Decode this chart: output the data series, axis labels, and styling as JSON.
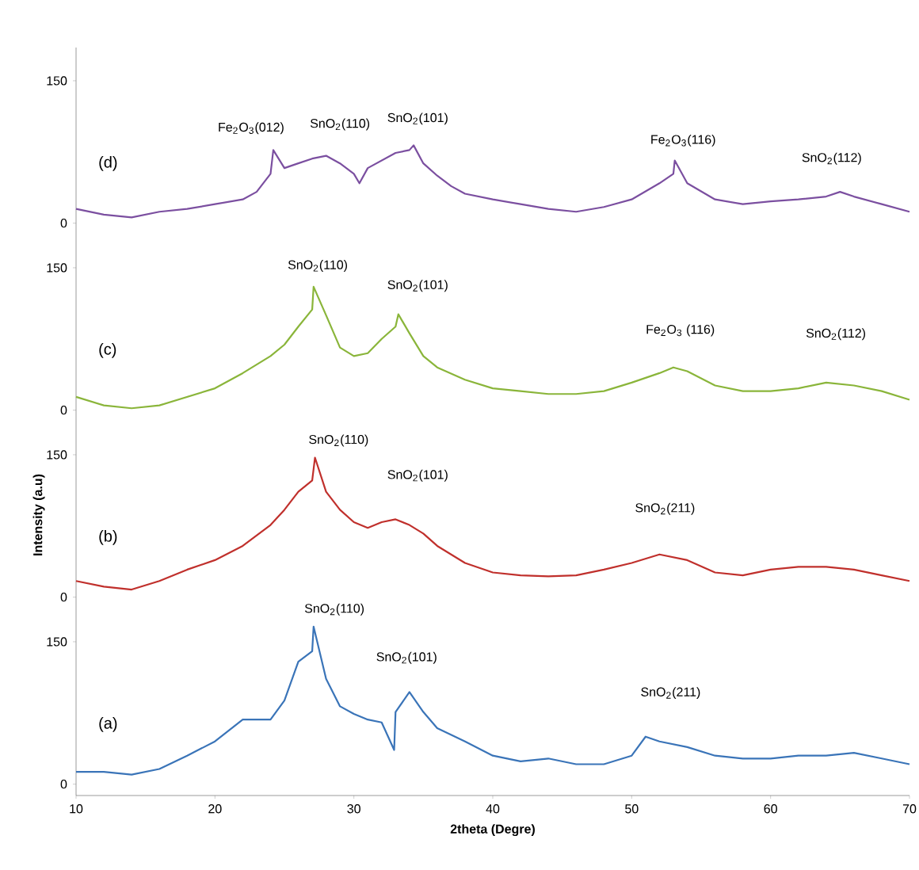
{
  "chart_data": [
    {
      "type": "line",
      "xlim": [
        10,
        70
      ],
      "ylim": [
        -12,
        185
      ],
      "yticks": [
        0,
        150
      ],
      "tick_labels": "y",
      "series": [
        {
          "name": "(d)",
          "color": "#7b4fa0",
          "x": [
            10,
            12,
            14,
            16,
            18,
            20,
            22,
            23,
            24,
            24.2,
            25,
            26,
            27,
            28,
            29,
            30,
            30.4,
            31,
            32,
            33,
            34,
            34.3,
            35,
            36,
            37,
            38,
            40,
            42,
            44,
            46,
            48,
            50,
            52,
            53,
            53.1,
            54,
            56,
            58,
            60,
            62,
            64,
            65,
            66,
            68,
            70
          ],
          "values": [
            15,
            9,
            6,
            12,
            15,
            20,
            25,
            33,
            52,
            77,
            58,
            63,
            68,
            71,
            63,
            52,
            42,
            58,
            66,
            74,
            77,
            82,
            63,
            50,
            39,
            31,
            25,
            20,
            15,
            12,
            17,
            25,
            42,
            52,
            66,
            42,
            25,
            20,
            23,
            25,
            28,
            33,
            28,
            20,
            12
          ]
        }
      ],
      "annotations": [
        "Fe$_{2}$O$_{3}$(012)",
        "SnO$_{2}$(110)",
        "SnO$_{2}$(101)",
        "Fe$_{2}$O$_{3}$(116)",
        "SnO$_{2}$(112)"
      ]
    },
    {
      "type": "line",
      "xlim": [
        10,
        70
      ],
      "ylim": [
        -12,
        185
      ],
      "yticks": [
        0,
        150
      ],
      "tick_labels": "y",
      "series": [
        {
          "name": "(c)",
          "color": "#8ab53a",
          "x": [
            10,
            12,
            14,
            16,
            18,
            20,
            22,
            24,
            25,
            26,
            27,
            27.1,
            28,
            29,
            30,
            31,
            32,
            33,
            33.2,
            34,
            35,
            36,
            38,
            40,
            42,
            44,
            46,
            48,
            50,
            52,
            53,
            54,
            56,
            58,
            60,
            62,
            64,
            66,
            68,
            70
          ],
          "values": [
            14,
            5,
            2,
            5,
            14,
            23,
            39,
            57,
            69,
            88,
            106,
            130,
            100,
            66,
            57,
            60,
            75,
            88,
            101,
            81,
            57,
            45,
            32,
            23,
            20,
            17,
            17,
            20,
            29,
            39,
            45,
            41,
            26,
            20,
            20,
            23,
            29,
            26,
            20,
            11
          ]
        }
      ],
      "annotations": [
        "SnO$_{2}$(110)",
        "SnO$_{2}$(101)",
        "Fe$_{2}$O$_{3}$ (116)",
        "SnO$_{2}$(112)"
      ]
    },
    {
      "type": "line",
      "xlim": [
        10,
        70
      ],
      "ylim": [
        -12,
        185
      ],
      "yticks": [
        0,
        150
      ],
      "tick_labels": "y",
      "ylabel": "Intensity (a.u)",
      "series": [
        {
          "name": "(b)",
          "color": "#c0302c",
          "x": [
            10,
            12,
            14,
            16,
            18,
            20,
            22,
            24,
            25,
            26,
            27,
            27.2,
            28,
            29,
            30,
            31,
            32,
            33,
            34,
            35,
            36,
            38,
            40,
            42,
            44,
            46,
            48,
            50,
            52,
            54,
            56,
            58,
            60,
            62,
            64,
            66,
            68,
            70
          ],
          "values": [
            17,
            11,
            8,
            17,
            29,
            39,
            54,
            76,
            92,
            111,
            123,
            147,
            111,
            92,
            79,
            73,
            79,
            82,
            76,
            67,
            54,
            36,
            26,
            23,
            22,
            23,
            29,
            36,
            45,
            39,
            26,
            23,
            29,
            32,
            32,
            29,
            23,
            17
          ]
        }
      ],
      "annotations": [
        "SnO$_{2}$(110)",
        "SnO$_{2}$(101)",
        "SnO$_{2}$(211)"
      ]
    },
    {
      "type": "line",
      "xlim": [
        10,
        70
      ],
      "ylim": [
        -12,
        185
      ],
      "xticks": [
        10,
        20,
        30,
        40,
        50,
        60,
        70
      ],
      "yticks": [
        0,
        150
      ],
      "xlabel": "2theta (Degre)",
      "series": [
        {
          "name": "(a)",
          "color": "#3a74b8",
          "x": [
            10,
            12,
            14,
            16,
            18,
            20,
            22,
            24,
            25,
            26,
            27,
            27.1,
            28,
            29,
            30,
            31,
            32,
            32.9,
            33,
            34,
            35,
            36,
            38,
            40,
            42,
            44,
            46,
            48,
            50,
            51,
            52,
            54,
            56,
            58,
            60,
            62,
            64,
            66,
            68,
            70
          ],
          "values": [
            13,
            13,
            10,
            16,
            30,
            45,
            68,
            68,
            88,
            129,
            140,
            166,
            111,
            82,
            74,
            68,
            65,
            36,
            76,
            97,
            76,
            59,
            45,
            30,
            24,
            27,
            21,
            21,
            30,
            50,
            45,
            39,
            30,
            27,
            27,
            30,
            30,
            33,
            27,
            21
          ]
        }
      ],
      "annotations": [
        "SnO$_{2}$(110)",
        "SnO$_{2}$(101)",
        "SnO$_{2}$(211)"
      ]
    }
  ]
}
